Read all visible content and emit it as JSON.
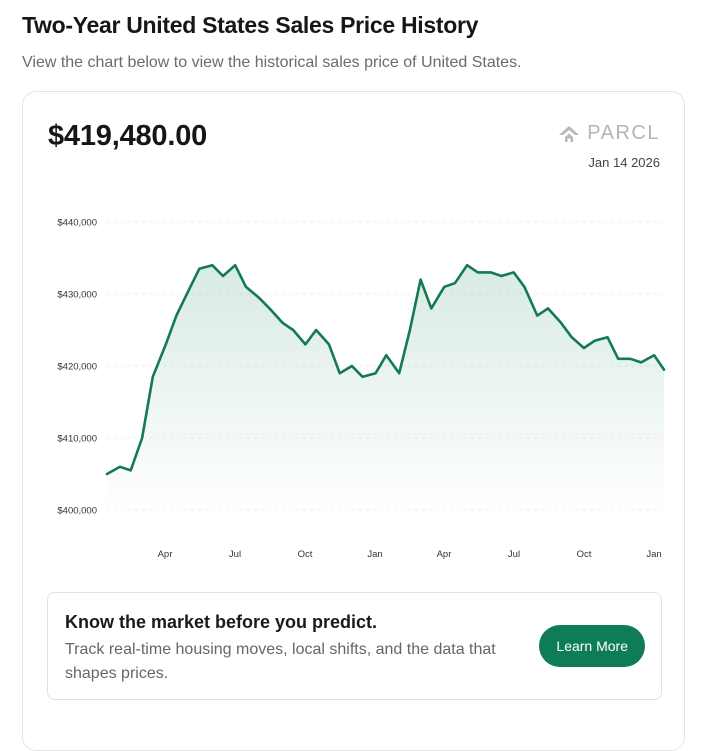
{
  "header": {
    "title": "Two-Year United States Sales Price History",
    "subtitle": "View the chart below to view the historical sales price of United States."
  },
  "card": {
    "price": "$419,480.00",
    "brand": "PARCL",
    "date": "Jan 14 2026"
  },
  "cta": {
    "title": "Know the market before you predict.",
    "body": "Track real-time housing moves, local shifts, and the data that shapes prices.",
    "button_label": "Learn More"
  },
  "colors": {
    "accent": "#0e7c58",
    "line": "#147a4f"
  },
  "chart_data": {
    "type": "area",
    "x_tick_labels": [
      "Apr",
      "Jul",
      "Oct",
      "Jan",
      "Apr",
      "Jul",
      "Oct",
      "Jan"
    ],
    "y_tick_labels": [
      "$400,000",
      "$410,000",
      "$420,000",
      "$430,000",
      "$440,000"
    ],
    "y_ticks": [
      400000,
      410000,
      420000,
      430000,
      440000
    ],
    "ylim": [
      400000,
      440000
    ],
    "xlim": [
      "2024-01-15",
      "2026-01-14"
    ],
    "grid": true,
    "series": [
      {
        "x": [
          "2024-01-15",
          "2024-02-01",
          "2024-02-15",
          "2024-03-01",
          "2024-03-15",
          "2024-04-01",
          "2024-04-15",
          "2024-05-01",
          "2024-05-15",
          "2024-06-01",
          "2024-06-15",
          "2024-07-01",
          "2024-07-15",
          "2024-08-01",
          "2024-08-15",
          "2024-09-01",
          "2024-09-15",
          "2024-10-01",
          "2024-10-15",
          "2024-11-01",
          "2024-11-15",
          "2024-12-01",
          "2024-12-15",
          "2025-01-01",
          "2025-01-15",
          "2025-02-01",
          "2025-02-15",
          "2025-03-01",
          "2025-03-15",
          "2025-04-01",
          "2025-04-15",
          "2025-05-01",
          "2025-05-15",
          "2025-06-01",
          "2025-06-15",
          "2025-07-01",
          "2025-07-15",
          "2025-08-01",
          "2025-08-15",
          "2025-09-01",
          "2025-09-15",
          "2025-10-01",
          "2025-10-15",
          "2025-11-01",
          "2025-11-15",
          "2025-12-01",
          "2025-12-15",
          "2026-01-01",
          "2026-01-14"
        ],
        "values": [
          405000,
          406000,
          405500,
          410000,
          418500,
          423000,
          427000,
          430500,
          433500,
          434000,
          432500,
          434000,
          431000,
          429500,
          428000,
          426000,
          425000,
          423000,
          425000,
          423000,
          419000,
          420000,
          418500,
          419000,
          421500,
          419000,
          425000,
          432000,
          428000,
          431000,
          431500,
          434000,
          433000,
          433000,
          432500,
          433000,
          431000,
          427000,
          428000,
          426000,
          424000,
          422500,
          423500,
          424000,
          421000,
          421000,
          420500,
          421500,
          419500
        ]
      }
    ]
  }
}
